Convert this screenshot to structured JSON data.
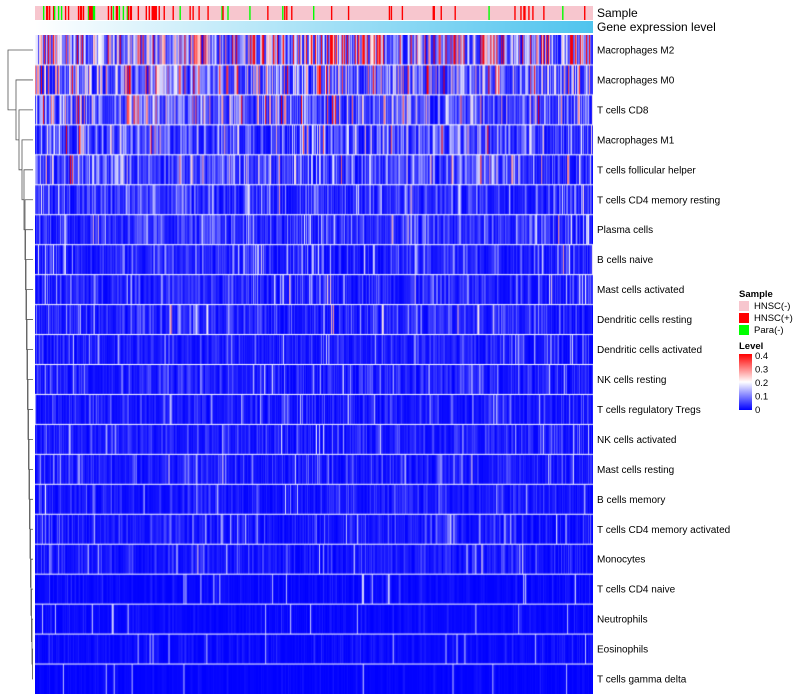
{
  "chart_data": {
    "type": "heatmap",
    "title": "",
    "annotations": [
      {
        "name": "Sample",
        "label": "Sample"
      },
      {
        "name": "Gene expression level",
        "label": "Gene expression level"
      }
    ],
    "row_labels": [
      "Macrophages M2",
      "Macrophages M0",
      "T cells CD8",
      "Macrophages M1",
      "T cells follicular helper",
      "T cells CD4 memory resting",
      "Plasma cells",
      "B cells naive",
      "Mast cells activated",
      "Dendritic cells resting",
      "Dendritic cells activated",
      "NK cells resting",
      "T cells regulatory  Tregs",
      "NK cells activated",
      "Mast cells resting",
      "B cells memory",
      "T cells CD4 memory activated",
      "Monocytes",
      "T cells CD4 naive",
      "Neutrophils",
      "Eosinophils",
      "T cells gamma delta"
    ],
    "row_mean_level": [
      0.2,
      0.13,
      0.1,
      0.08,
      0.08,
      0.05,
      0.05,
      0.04,
      0.04,
      0.04,
      0.03,
      0.03,
      0.03,
      0.03,
      0.03,
      0.025,
      0.025,
      0.025,
      0.01,
      0.01,
      0.01,
      0.005
    ],
    "n_samples": 560,
    "sample_groups": [
      {
        "name": "HNSC(-)",
        "color": "#F7C6CE"
      },
      {
        "name": "HNSC(+)",
        "color": "#FF0000"
      },
      {
        "name": "Para(-)",
        "color": "#00FF00"
      }
    ],
    "sample_group_fractions": [
      0.86,
      0.09,
      0.05
    ],
    "legend": {
      "sample_title": "Sample",
      "level_title": "Level",
      "level_ticks": [
        "0.4",
        "0.3",
        "0.2",
        "0.1",
        "0"
      ],
      "level_range": [
        0,
        0.4
      ],
      "color_low": "#0000FF",
      "color_mid": "#FFFFFF",
      "color_high": "#FF0000",
      "placement": "right"
    },
    "gradient_colors": [
      "#FFFFFF",
      "#4FC4EE"
    ]
  }
}
